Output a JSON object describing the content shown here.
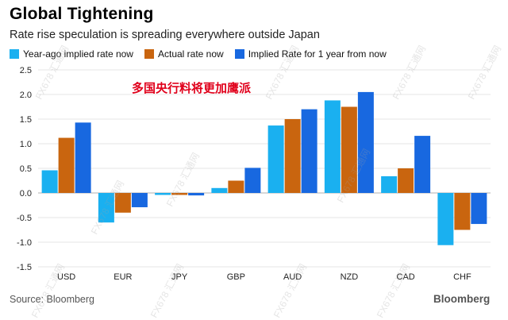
{
  "header": {
    "title": "Global Tightening",
    "subtitle": "Rate rise speculation is spreading everywhere outside Japan"
  },
  "annotation": "多国央行料将更加鹰派",
  "footer": {
    "source": "Source: Bloomberg",
    "brand": "Bloomberg"
  },
  "watermark": "FX678 汇通网",
  "colors": {
    "year_ago": "#1ab0f0",
    "actual": "#c9650f",
    "implied": "#1868e0",
    "grid": "#e6e6e6",
    "zero_line": "#b0b0b0"
  },
  "chart_data": {
    "type": "bar",
    "title": "Global Tightening",
    "subtitle": "Rate rise speculation is spreading everywhere outside Japan",
    "xlabel": "",
    "ylabel": "",
    "ylim": [
      -1.5,
      2.5
    ],
    "yticks": [
      "2.5",
      "2.0",
      "1.5",
      "1.0",
      "0.5",
      "0.0",
      "-0.5",
      "-1.0",
      "-1.5"
    ],
    "ytick_values": [
      2.5,
      2.0,
      1.5,
      1.0,
      0.5,
      0.0,
      -0.5,
      -1.0,
      -1.5
    ],
    "grid": true,
    "legend_position": "top-left",
    "categories": [
      "USD",
      "EUR",
      "JPY",
      "GBP",
      "AUD",
      "NZD",
      "CAD",
      "CHF"
    ],
    "series": [
      {
        "name": "Year-ago implied rate now",
        "color": "#1ab0f0",
        "values": [
          0.46,
          -0.6,
          -0.04,
          0.1,
          1.37,
          1.88,
          0.34,
          -1.06
        ]
      },
      {
        "name": "Actual rate now",
        "color": "#c9650f",
        "values": [
          1.12,
          -0.4,
          -0.04,
          0.25,
          1.5,
          1.75,
          0.5,
          -0.75
        ]
      },
      {
        "name": "Implied Rate for 1 year from now",
        "color": "#1868e0",
        "values": [
          1.43,
          -0.29,
          -0.05,
          0.51,
          1.7,
          2.05,
          1.16,
          -0.63
        ]
      }
    ]
  }
}
